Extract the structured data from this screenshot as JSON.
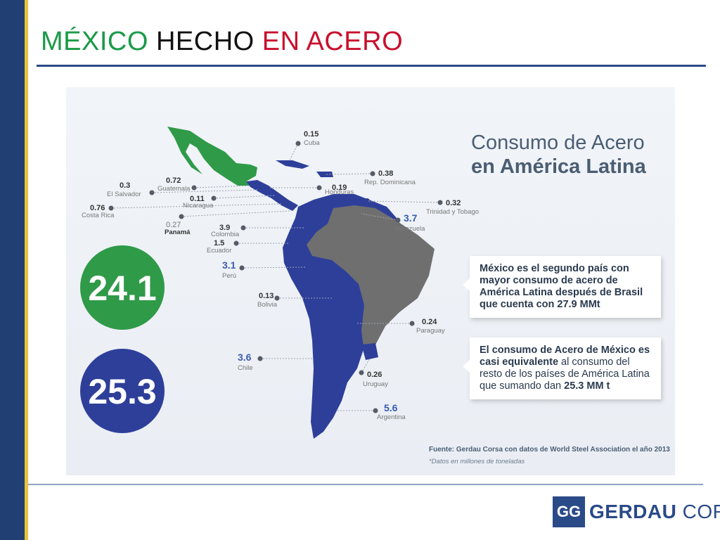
{
  "title": {
    "part1": "MÉXICO",
    "part2": "HECHO",
    "part3": "EN ACERO",
    "colors": {
      "part1": "#1a9a48",
      "part2": "#111111",
      "part3": "#c8102e"
    }
  },
  "panel": {
    "heading_line1": "Consumo de Acero",
    "heading_line2": "en América Latina",
    "mexico_value": "24.1",
    "rest_value": "25.3",
    "info_box_1": "México es el segundo país con mayor consumo de acero de América Latina después de Brasil que cuenta con 27.9 MMt",
    "info_box_2": {
      "bold_1": "El consumo de Acero de México es casi equivalente",
      "normal": " al consumo del resto de los países de América Latina que sumando dan ",
      "bold_2": "25.3 MM t"
    },
    "source": "Fuente: Gerdau Corsa con  datos de World Steel Association el año 2013",
    "note": "*Datos en millones de toneladas"
  },
  "map_labels": [
    {
      "id": "cuba",
      "value": "0.15",
      "country": "Cuba"
    },
    {
      "id": "rep-dominicana",
      "value": "0.38",
      "country": "Rep. Dominicana"
    },
    {
      "id": "el-salvador",
      "value": "0.3",
      "country": "El Salvador"
    },
    {
      "id": "guatemala",
      "value": "0.72",
      "country": "Guatemala"
    },
    {
      "id": "honduras",
      "value": "0.19",
      "country": "Honduras"
    },
    {
      "id": "nicaragua",
      "value": "0.11",
      "country": "Nicaragua"
    },
    {
      "id": "costa-rica",
      "value": "0.76",
      "country": "Costa Rica"
    },
    {
      "id": "trinidad-y-tobago",
      "value": "0.32",
      "country": "Trinidad y Tobago"
    },
    {
      "id": "panama",
      "value": "0.27",
      "country": "Panamá"
    },
    {
      "id": "venezuela",
      "value": "3.7",
      "country": "Venezuela"
    },
    {
      "id": "colombia",
      "value": "3.9",
      "country": "Colombia"
    },
    {
      "id": "ecuador",
      "value": "1.5",
      "country": "Ecuador"
    },
    {
      "id": "peru",
      "value": "3.1",
      "country": "Perú"
    },
    {
      "id": "bolivia",
      "value": "0.13",
      "country": "Bolivia"
    },
    {
      "id": "paraguay",
      "value": "0.24",
      "country": "Paraguay"
    },
    {
      "id": "chile",
      "value": "3.6",
      "country": "Chile"
    },
    {
      "id": "uruguay",
      "value": "0.26",
      "country": "Uruguay"
    },
    {
      "id": "argentina",
      "value": "5.6",
      "country": "Argentina"
    }
  ],
  "colors": {
    "mexico_green": "#2f9a48",
    "latam_blue": "#2e3f9a",
    "brazil_gray": "#6f6f6f",
    "accent_bar": "#223f73",
    "accent_bar_stripe": "#e8c23a"
  },
  "logo": {
    "mark": "GG",
    "text_bold": "GERDAU",
    "text_light": "CORSA"
  }
}
